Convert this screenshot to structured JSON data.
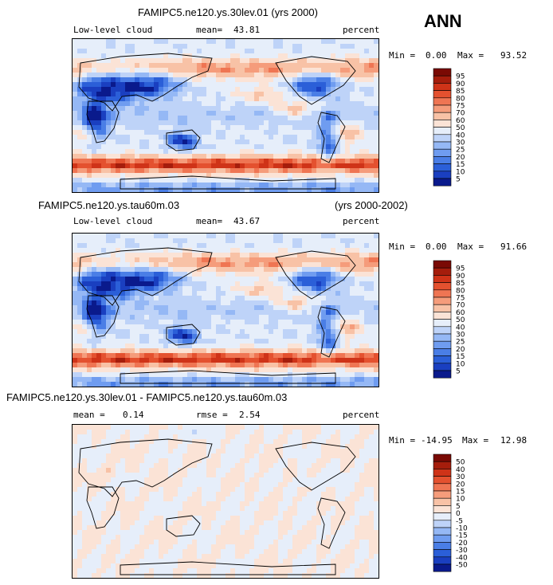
{
  "season": "ANN",
  "panels": [
    {
      "title": "FAMIPC5.ne120.ys.30lev.01 (yrs 2000)",
      "title_right": "",
      "left_label": "Low-level cloud",
      "stat1_label": "mean=",
      "stat1_value": "43.81",
      "stat2_label": "",
      "stat2_value": "",
      "units": "percent",
      "min_label": "Min =",
      "min_value": "0.00",
      "max_label": "Max =",
      "max_value": "93.52",
      "type": "field",
      "colorbar_levels": [
        "95",
        "90",
        "85",
        "80",
        "75",
        "70",
        "60",
        "50",
        "40",
        "30",
        "25",
        "20",
        "15",
        "10",
        "5"
      ]
    },
    {
      "title": "FAMIPC5.ne120.ys.tau60m.03",
      "title_right": "(yrs 2000-2002)",
      "left_label": "Low-level cloud",
      "stat1_label": "mean=",
      "stat1_value": "43.67",
      "stat2_label": "",
      "stat2_value": "",
      "units": "percent",
      "min_label": "Min =",
      "min_value": "0.00",
      "max_label": "Max =",
      "max_value": "91.66",
      "type": "field",
      "colorbar_levels": [
        "95",
        "90",
        "85",
        "80",
        "75",
        "70",
        "60",
        "50",
        "40",
        "30",
        "25",
        "20",
        "15",
        "10",
        "5"
      ]
    },
    {
      "title": "FAMIPC5.ne120.ys.30lev.01 - FAMIPC5.ne120.ys.tau60m.03",
      "title_right": "",
      "left_label": "mean =",
      "left_value": "0.14",
      "stat1_label": "",
      "stat1_value": "",
      "stat2_label": "rmse =",
      "stat2_value": "2.54",
      "units": "percent",
      "min_label": "Min =",
      "min_value": "-14.95",
      "max_label": "Max =",
      "max_value": "12.98",
      "type": "diff",
      "colorbar_levels": [
        "50",
        "40",
        "30",
        "20",
        "15",
        "10",
        "5",
        "0",
        "-5",
        "-10",
        "-15",
        "-20",
        "-30",
        "-40",
        "-50"
      ]
    }
  ],
  "chart_data": [
    {
      "type": "heatmap",
      "title": "FAMIPC5.ne120.ys.30lev.01 (yrs 2000)",
      "variable": "Low-level cloud",
      "units": "percent",
      "mean": 43.81,
      "min": 0.0,
      "max": 93.52,
      "contour_levels": [
        5,
        10,
        15,
        20,
        25,
        30,
        40,
        50,
        60,
        70,
        75,
        80,
        85,
        90,
        95
      ],
      "colors": [
        "#0a1a8c",
        "#1a3fc0",
        "#2b5fd8",
        "#4a7ee6",
        "#6f9cf0",
        "#95b8f5",
        "#bed3f8",
        "#e6eefa",
        "#fbe3d6",
        "#f8c2a6",
        "#f59c7b",
        "#ef7553",
        "#e4512f",
        "#cf3318",
        "#a51d0c",
        "#7a0a04"
      ]
    },
    {
      "type": "heatmap",
      "title": "FAMIPC5.ne120.ys.tau60m.03",
      "variable": "Low-level cloud",
      "units": "percent",
      "mean": 43.67,
      "min": 0.0,
      "max": 91.66,
      "contour_levels": [
        5,
        10,
        15,
        20,
        25,
        30,
        40,
        50,
        60,
        70,
        75,
        80,
        85,
        90,
        95
      ]
    },
    {
      "type": "heatmap",
      "title": "FAMIPC5.ne120.ys.30lev.01 - FAMIPC5.ne120.ys.tau60m.03",
      "units": "percent",
      "mean": 0.14,
      "rmse": 2.54,
      "min": -14.95,
      "max": 12.98,
      "contour_levels": [
        -50,
        -40,
        -30,
        -20,
        -15,
        -10,
        -5,
        0,
        5,
        10,
        15,
        20,
        30,
        40,
        50
      ]
    }
  ],
  "colors": {
    "field_ramp": [
      "#0a1a8c",
      "#1a3fc0",
      "#2b5fd8",
      "#4a7ee6",
      "#6f9cf0",
      "#95b8f5",
      "#bed3f8",
      "#e6eefa",
      "#fbe3d6",
      "#f8c2a6",
      "#f59c7b",
      "#ef7553",
      "#e4512f",
      "#cf3318",
      "#a51d0c",
      "#7a0a04"
    ],
    "diff_ramp": [
      "#0a1a8c",
      "#1a3fc0",
      "#2b5fd8",
      "#4a7ee6",
      "#6f9cf0",
      "#95b8f5",
      "#bed3f8",
      "#e6eefa",
      "#fbe3d6",
      "#f8c2a6",
      "#f59c7b",
      "#ef7553",
      "#e4512f",
      "#cf3318",
      "#a51d0c",
      "#7a0a04"
    ]
  }
}
